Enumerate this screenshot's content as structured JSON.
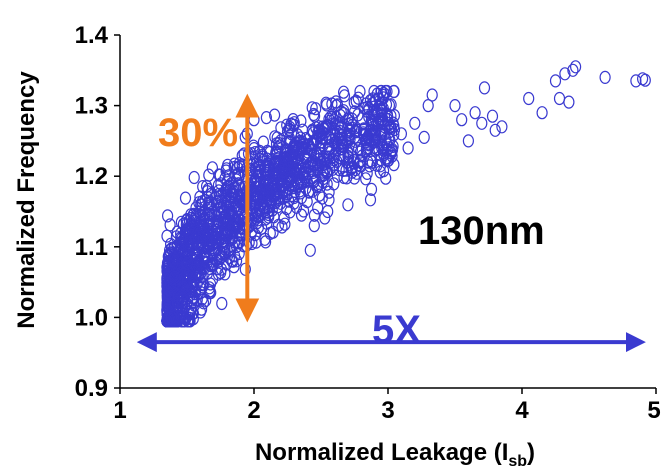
{
  "chart_data": {
    "type": "scatter",
    "title": "",
    "xlabel": "Normalized Leakage (I",
    "xlabel_subscript": "sb",
    "xlabel_suffix": ")",
    "ylabel": "Normalized Frequency",
    "xlim": [
      1,
      5
    ],
    "ylim": [
      0.9,
      1.4
    ],
    "xticks": [
      "1",
      "2",
      "3",
      "4",
      "5"
    ],
    "yticks": [
      "0.9",
      "1.0",
      "1.1",
      "1.2",
      "1.3",
      "1.4"
    ],
    "grid": false,
    "marker": "open-circle",
    "series_color": "#3a3ad0",
    "annotations": {
      "freq_spread": {
        "text": "30%",
        "color": "#f07c1c",
        "x": 1.95,
        "y_range": [
          1.01,
          1.3
        ]
      },
      "leakage_spread": {
        "text": "5X",
        "color": "#3a3ad0",
        "y": 0.965,
        "x_range": [
          1.2,
          4.85
        ]
      },
      "node": {
        "text": "130nm",
        "color": "#000000"
      }
    },
    "points": [
      {
        "x": 4.4,
        "y": 1.355
      },
      {
        "x": 4.38,
        "y": 1.35
      },
      {
        "x": 4.32,
        "y": 1.345
      },
      {
        "x": 4.25,
        "y": 1.335
      },
      {
        "x": 4.62,
        "y": 1.34
      },
      {
        "x": 4.85,
        "y": 1.335
      },
      {
        "x": 4.9,
        "y": 1.338
      },
      {
        "x": 4.92,
        "y": 1.336
      },
      {
        "x": 4.28,
        "y": 1.31
      },
      {
        "x": 4.35,
        "y": 1.305
      },
      {
        "x": 4.05,
        "y": 1.31
      },
      {
        "x": 4.15,
        "y": 1.29
      },
      {
        "x": 3.72,
        "y": 1.325
      },
      {
        "x": 3.5,
        "y": 1.3
      },
      {
        "x": 3.55,
        "y": 1.28
      },
      {
        "x": 3.65,
        "y": 1.29
      },
      {
        "x": 3.78,
        "y": 1.285
      },
      {
        "x": 3.8,
        "y": 1.265
      },
      {
        "x": 3.85,
        "y": 1.27
      },
      {
        "x": 3.6,
        "y": 1.25
      },
      {
        "x": 3.7,
        "y": 1.275
      },
      {
        "x": 3.33,
        "y": 1.315
      },
      {
        "x": 3.27,
        "y": 1.255
      },
      {
        "x": 3.3,
        "y": 1.3
      },
      {
        "x": 3.2,
        "y": 1.275
      },
      {
        "x": 3.15,
        "y": 1.24
      },
      {
        "x": 3.1,
        "y": 1.26
      },
      {
        "x": 2.55,
        "y": 1.15
      },
      {
        "x": 2.42,
        "y": 1.095
      },
      {
        "x": 2.45,
        "y": 1.13
      },
      {
        "x": 2.7,
        "y": 1.235
      },
      {
        "x": 2.85,
        "y": 1.22
      },
      {
        "x": 2.9,
        "y": 1.26
      },
      {
        "x": 2.3,
        "y": 1.24
      },
      {
        "x": 2.0,
        "y": 1.28
      },
      {
        "x": 1.95,
        "y": 1.26
      }
    ],
    "cluster": {
      "count": 1500,
      "x_range": [
        1.35,
        3.05
      ],
      "y_trend": [
        [
          1.35,
          1.02
        ],
        [
          1.5,
          1.07
        ],
        [
          1.7,
          1.12
        ],
        [
          2.0,
          1.175
        ],
        [
          2.3,
          1.215
        ],
        [
          2.6,
          1.245
        ],
        [
          2.9,
          1.265
        ],
        [
          3.05,
          1.27
        ]
      ],
      "y_spread": 0.035
    }
  }
}
